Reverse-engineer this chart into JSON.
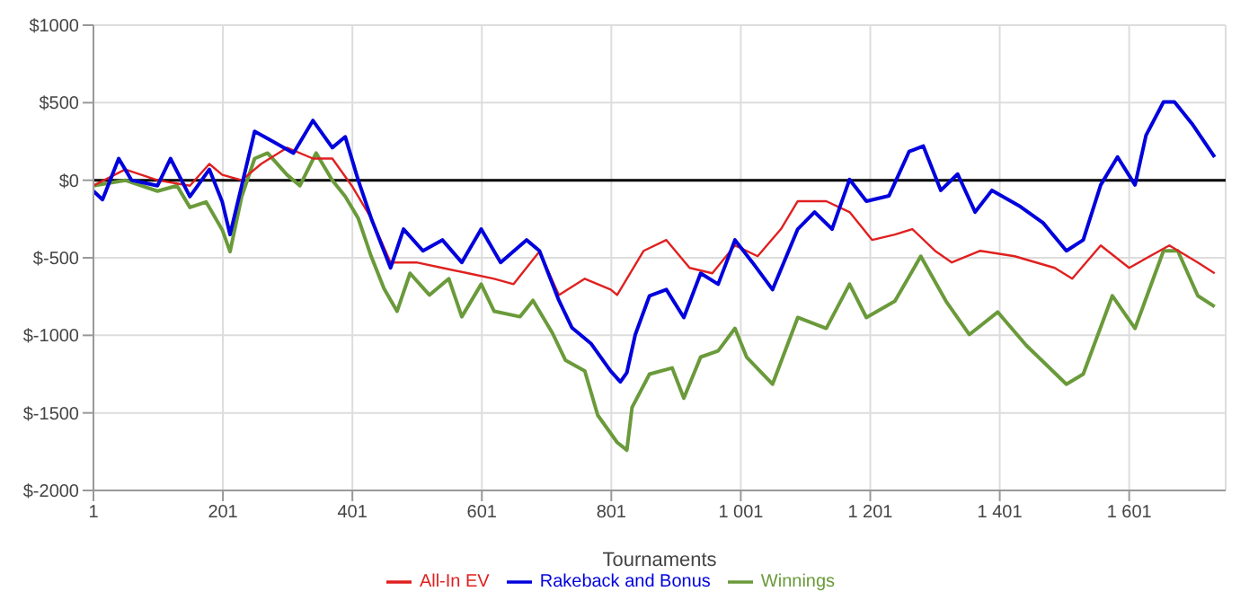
{
  "chart_data": {
    "type": "line",
    "xlabel": "Tournaments",
    "xlim": [
      1,
      1750
    ],
    "xticks": [
      1,
      201,
      401,
      601,
      801,
      {
        "value": 1001,
        "label": "1 001"
      },
      {
        "value": 1201,
        "label": "1 201"
      },
      {
        "value": 1401,
        "label": "1 401"
      },
      {
        "value": 1601,
        "label": "1 601"
      }
    ],
    "ylim": [
      -2000,
      1000
    ],
    "yticks": [
      {
        "value": -2000,
        "label": "$-2000"
      },
      {
        "value": -1500,
        "label": "$-1500"
      },
      {
        "value": -1000,
        "label": "$-1000"
      },
      {
        "value": -500,
        "label": "$-500"
      },
      {
        "value": 0,
        "label": "$0"
      },
      {
        "value": 500,
        "label": "$500"
      },
      {
        "value": 1000,
        "label": "$1000"
      }
    ],
    "grid": true,
    "legend": "bottom",
    "marker": "none",
    "line_style": "solid",
    "ref_lines": [
      {
        "axis": "y",
        "value": 0,
        "color": "#000000"
      }
    ],
    "series": [
      {
        "name": "Winnings",
        "color": "#6a9a3a",
        "x": [
          1,
          50,
          100,
          130,
          150,
          175,
          200,
          212,
          230,
          250,
          270,
          300,
          320,
          345,
          370,
          390,
          410,
          430,
          450,
          470,
          490,
          520,
          550,
          570,
          600,
          620,
          660,
          680,
          710,
          730,
          760,
          780,
          810,
          825,
          833,
          860,
          895,
          913,
          939,
          966,
          992,
          1010,
          1050,
          1089,
          1133,
          1169,
          1195,
          1239,
          1279,
          1318,
          1354,
          1398,
          1442,
          1504,
          1530,
          1575,
          1610,
          1654,
          1676,
          1707,
          1733
        ],
        "values": [
          -35,
          0,
          -70,
          -35,
          -175,
          -140,
          -320,
          -460,
          -105,
          140,
          175,
          35,
          -35,
          175,
          0,
          -105,
          -245,
          -490,
          -700,
          -845,
          -600,
          -740,
          -635,
          -880,
          -670,
          -845,
          -880,
          -775,
          -985,
          -1160,
          -1230,
          -1515,
          -1690,
          -1740,
          -1465,
          -1250,
          -1210,
          -1405,
          -1140,
          -1100,
          -955,
          -1140,
          -1315,
          -885,
          -955,
          -670,
          -885,
          -780,
          -490,
          -780,
          -995,
          -850,
          -1065,
          -1315,
          -1250,
          -745,
          -955,
          -455,
          -455,
          -745,
          -815
        ]
      },
      {
        "name": "All-In EV",
        "color": "#e02020",
        "x": [
          1,
          50,
          100,
          150,
          180,
          200,
          230,
          260,
          300,
          340,
          370,
          400,
          430,
          460,
          500,
          540,
          580,
          620,
          650,
          690,
          720,
          760,
          800,
          810,
          825,
          851,
          886,
          922,
          957,
          992,
          1027,
          1063,
          1089,
          1133,
          1169,
          1204,
          1239,
          1266,
          1301,
          1327,
          1371,
          1424,
          1486,
          1513,
          1557,
          1601,
          1663,
          1707,
          1733
        ],
        "values": [
          -35,
          70,
          0,
          -35,
          105,
          35,
          0,
          105,
          210,
          140,
          140,
          -35,
          -245,
          -530,
          -530,
          -565,
          -600,
          -635,
          -670,
          -460,
          -740,
          -635,
          -705,
          -740,
          -635,
          -455,
          -385,
          -565,
          -600,
          -420,
          -490,
          -315,
          -135,
          -135,
          -205,
          -385,
          -350,
          -315,
          -455,
          -530,
          -455,
          -490,
          -565,
          -635,
          -420,
          -565,
          -420,
          -530,
          -600
        ]
      },
      {
        "name": "Rakeback and Bonus",
        "color": "#0000dd",
        "x": [
          1,
          15,
          40,
          60,
          100,
          120,
          150,
          180,
          200,
          212,
          230,
          250,
          280,
          310,
          340,
          370,
          390,
          410,
          430,
          460,
          480,
          510,
          540,
          570,
          600,
          630,
          670,
          690,
          720,
          740,
          770,
          800,
          815,
          825,
          838,
          860,
          886,
          913,
          939,
          966,
          992,
          1019,
          1050,
          1089,
          1115,
          1142,
          1169,
          1195,
          1230,
          1261,
          1283,
          1310,
          1336,
          1363,
          1389,
          1433,
          1468,
          1504,
          1530,
          1557,
          1583,
          1610,
          1627,
          1654,
          1671,
          1698,
          1733
        ],
        "values": [
          -70,
          -125,
          140,
          0,
          -35,
          140,
          -105,
          70,
          -140,
          -350,
          -35,
          315,
          245,
          175,
          385,
          210,
          280,
          0,
          -245,
          -565,
          -315,
          -455,
          -385,
          -530,
          -315,
          -530,
          -385,
          -455,
          -775,
          -950,
          -1055,
          -1230,
          -1300,
          -1240,
          -995,
          -745,
          -705,
          -885,
          -600,
          -670,
          -385,
          -530,
          -705,
          -315,
          -205,
          -315,
          5,
          -135,
          -100,
          185,
          220,
          -65,
          40,
          -205,
          -65,
          -170,
          -275,
          -455,
          -385,
          -30,
          150,
          -30,
          290,
          505,
          505,
          365,
          150
        ]
      }
    ]
  }
}
